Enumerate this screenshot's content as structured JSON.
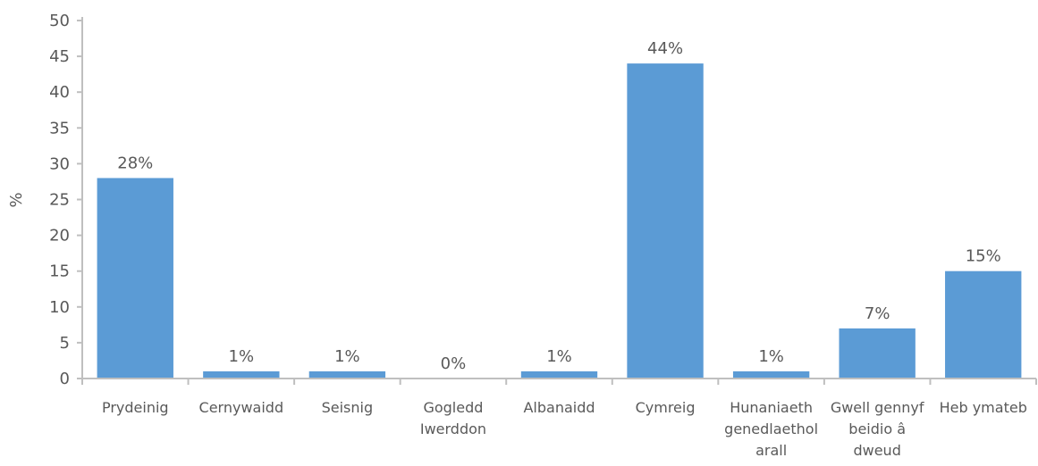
{
  "chart_data": {
    "type": "bar",
    "title": "",
    "xlabel": "",
    "ylabel": "%",
    "ylim": [
      0,
      50
    ],
    "yticks": [
      0,
      5,
      10,
      15,
      20,
      25,
      30,
      35,
      40,
      45,
      50
    ],
    "grid": false,
    "legend": "none",
    "bar_color": "#5b9bd5",
    "categories": [
      [
        "Prydeinig"
      ],
      [
        "Cernywaidd"
      ],
      [
        "Seisnig"
      ],
      [
        "Gogledd",
        "Iwerddon"
      ],
      [
        "Albanaidd"
      ],
      [
        "Cymreig"
      ],
      [
        "Hunaniaeth",
        "genedlaethol",
        "arall"
      ],
      [
        "Gwell gennyf",
        "beidio â",
        "dweud"
      ],
      [
        "Heb ymateb"
      ]
    ],
    "values": [
      28,
      1,
      1,
      0,
      1,
      44,
      1,
      7,
      15
    ],
    "data_labels": [
      "28%",
      "1%",
      "1%",
      "0%",
      "1%",
      "44%",
      "1%",
      "7%",
      "15%"
    ]
  }
}
